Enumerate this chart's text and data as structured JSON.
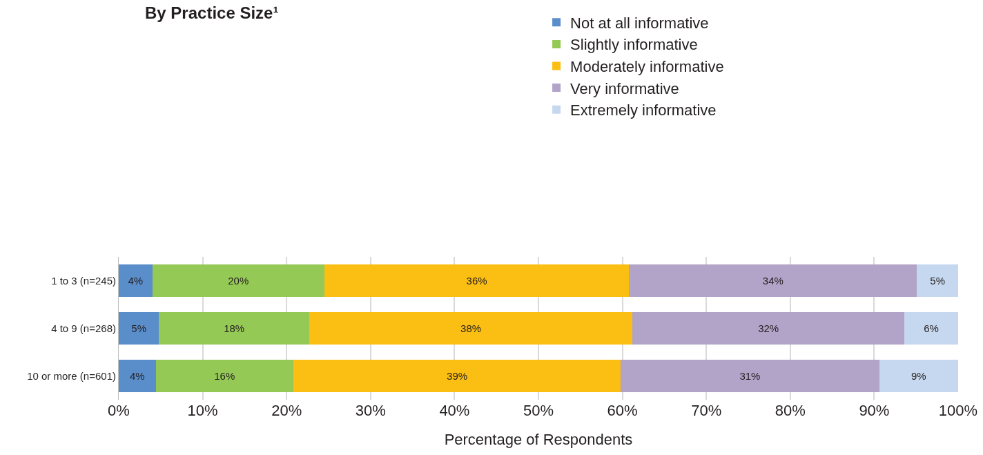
{
  "chart_data": {
    "type": "bar",
    "title": "By Practice Size¹",
    "orientation": "horizontal",
    "stacked": true,
    "categories": [
      "1 to 3 (n=245)",
      "4 to 9 (n=268)",
      "10 or more (n=601)"
    ],
    "series": [
      {
        "name": "Not at all informative",
        "color": "#5a8ecb",
        "values": [
          4.0,
          4.8,
          4.4
        ],
        "value_labels": [
          "4%",
          "5%",
          "4%"
        ]
      },
      {
        "name": "Slightly informative",
        "color": "#95c955",
        "values": [
          20.5,
          17.9,
          16.4
        ],
        "value_labels": [
          "20%",
          "18%",
          "16%"
        ]
      },
      {
        "name": "Moderately informative",
        "color": "#fbbe12",
        "values": [
          36.3,
          38.5,
          39.0
        ],
        "value_labels": [
          "36%",
          "38%",
          "39%"
        ]
      },
      {
        "name": "Very informative",
        "color": "#b2a3c8",
        "values": [
          34.3,
          32.4,
          30.8
        ],
        "value_labels": [
          "34%",
          "32%",
          "31%"
        ]
      },
      {
        "name": "Extremely informative",
        "color": "#c6d8ef",
        "values": [
          4.9,
          6.4,
          9.4
        ],
        "value_labels": [
          "5%",
          "6%",
          "9%"
        ]
      }
    ],
    "xlim": [
      0,
      100
    ],
    "xticks": [
      {
        "value": 0,
        "label": "0%"
      },
      {
        "value": 10,
        "label": "10%"
      },
      {
        "value": 20,
        "label": "20%"
      },
      {
        "value": 30,
        "label": "30%"
      },
      {
        "value": 40,
        "label": "40%"
      },
      {
        "value": 50,
        "label": "50%"
      },
      {
        "value": 60,
        "label": "60%"
      },
      {
        "value": 70,
        "label": "70%"
      },
      {
        "value": 80,
        "label": "80%"
      },
      {
        "value": 90,
        "label": "90%"
      },
      {
        "value": 100,
        "label": "100%"
      }
    ],
    "xlabel": "Percentage of Respondents",
    "grid": "x",
    "legend": "top"
  }
}
